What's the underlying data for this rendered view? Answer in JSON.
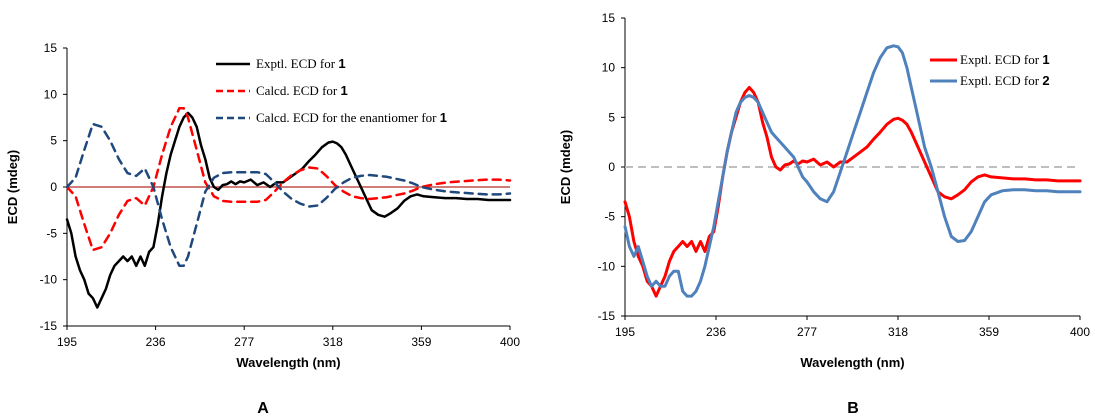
{
  "chart_data": [
    {
      "type": "line",
      "panel_label": "A",
      "xlabel": "Wavelength (nm)",
      "ylabel": "ECD (mdeg)",
      "xlim": [
        195,
        400
      ],
      "ylim": [
        -15,
        15
      ],
      "xticks": [
        195,
        236,
        277,
        318,
        359,
        400
      ],
      "yticks": [
        -15,
        -10,
        -5,
        0,
        5,
        10,
        15
      ],
      "grid": false,
      "legend_position": "top-right",
      "zero_line": {
        "y": 0,
        "color": "#c0504d"
      },
      "series": [
        {
          "name": "Exptl. ECD for",
          "compound": "1",
          "color": "#000000",
          "style": "solid",
          "x": [
            195,
            197,
            199,
            201,
            203,
            205,
            207,
            209,
            211,
            213,
            215,
            217,
            219,
            221,
            223,
            225,
            227,
            229,
            231,
            233,
            235,
            237,
            239,
            241,
            243,
            245,
            247,
            249,
            251,
            253,
            255,
            257,
            259,
            261,
            263,
            265,
            267,
            269,
            271,
            273,
            275,
            277,
            280,
            283,
            286,
            289,
            292,
            295,
            298,
            301,
            304,
            307,
            310,
            313,
            316,
            318,
            320,
            322,
            324,
            327,
            330,
            333,
            336,
            339,
            342,
            345,
            348,
            351,
            354,
            357,
            360,
            365,
            370,
            375,
            380,
            385,
            390,
            395,
            400
          ],
          "y": [
            -3.5,
            -5,
            -7.5,
            -9,
            -10,
            -11.5,
            -12,
            -13,
            -12,
            -11,
            -9.5,
            -8.5,
            -8,
            -7.5,
            -8,
            -7.5,
            -8.5,
            -7.5,
            -8.5,
            -7,
            -6.5,
            -4,
            -1,
            1.5,
            3.5,
            5,
            6.5,
            7.5,
            8,
            7.5,
            6.5,
            4.5,
            3,
            1,
            0,
            -0.3,
            0.2,
            0.3,
            0.6,
            0.3,
            0.6,
            0.5,
            0.8,
            0.2,
            0.5,
            0,
            0.5,
            0.5,
            1,
            1.5,
            2,
            2.8,
            3.5,
            4.3,
            4.8,
            4.9,
            4.7,
            4.3,
            3.5,
            2,
            0.5,
            -1,
            -2.5,
            -3,
            -3.2,
            -2.8,
            -2.3,
            -1.5,
            -1,
            -0.8,
            -1,
            -1.1,
            -1.2,
            -1.2,
            -1.3,
            -1.3,
            -1.4,
            -1.4,
            -1.4
          ]
        },
        {
          "name": "Calcd. ECD for",
          "compound": "1",
          "color": "#ff0000",
          "style": "dashed",
          "x": [
            195,
            199,
            203,
            207,
            211,
            215,
            219,
            223,
            227,
            231,
            235,
            239,
            243,
            247,
            249,
            251,
            255,
            259,
            263,
            267,
            271,
            275,
            279,
            283,
            287,
            291,
            295,
            299,
            303,
            307,
            311,
            315,
            319,
            323,
            327,
            331,
            335,
            339,
            343,
            347,
            351,
            355,
            359,
            365,
            371,
            377,
            383,
            389,
            395,
            400
          ],
          "y": [
            0,
            -1,
            -4,
            -6.8,
            -6.5,
            -5,
            -3,
            -1.5,
            -1.2,
            -2,
            0,
            3.5,
            6.5,
            8.5,
            8.5,
            7.5,
            4,
            0.5,
            -1,
            -1.5,
            -1.6,
            -1.6,
            -1.6,
            -1.6,
            -1.4,
            -0.5,
            0.5,
            1.3,
            1.8,
            2.1,
            2,
            1.2,
            0.2,
            -0.5,
            -1,
            -1.2,
            -1.3,
            -1.2,
            -1.1,
            -0.9,
            -0.7,
            -0.4,
            0,
            0.3,
            0.5,
            0.6,
            0.7,
            0.8,
            0.8,
            0.7
          ]
        },
        {
          "name": "Calcd. ECD for the enantiomer for",
          "compound": "1",
          "color": "#1f497d",
          "style": "dashed",
          "x": [
            195,
            199,
            203,
            207,
            211,
            215,
            219,
            223,
            227,
            231,
            235,
            239,
            243,
            247,
            249,
            251,
            255,
            259,
            263,
            267,
            271,
            275,
            279,
            283,
            287,
            291,
            295,
            299,
            303,
            307,
            311,
            315,
            319,
            323,
            327,
            331,
            335,
            339,
            343,
            347,
            351,
            355,
            359,
            365,
            371,
            377,
            383,
            389,
            395,
            400
          ],
          "y": [
            0,
            1,
            4,
            6.8,
            6.5,
            5,
            3,
            1.5,
            1.2,
            2,
            0,
            -3.5,
            -6.5,
            -8.5,
            -8.5,
            -7.5,
            -4,
            -0.5,
            1,
            1.5,
            1.6,
            1.6,
            1.6,
            1.6,
            1.4,
            0.5,
            -0.5,
            -1.3,
            -1.8,
            -2.1,
            -2,
            -1.2,
            -0.2,
            0.5,
            1,
            1.2,
            1.3,
            1.2,
            1.1,
            0.9,
            0.7,
            0.4,
            0,
            -0.3,
            -0.5,
            -0.6,
            -0.7,
            -0.8,
            -0.8,
            -0.7
          ]
        }
      ]
    },
    {
      "type": "line",
      "panel_label": "B",
      "xlabel": "Wavelength (nm)",
      "ylabel": "ECD (mdeg)",
      "xlim": [
        195,
        400
      ],
      "ylim": [
        -15,
        15
      ],
      "xticks": [
        195,
        236,
        277,
        318,
        359,
        400
      ],
      "yticks": [
        -15,
        -10,
        -5,
        0,
        5,
        10,
        15
      ],
      "grid": false,
      "legend_position": "top-right",
      "zero_line": {
        "y": 0,
        "color": "#bfbfbf"
      },
      "series": [
        {
          "name": "Exptl. ECD for",
          "compound": "1",
          "color": "#ff0000",
          "style": "solid",
          "x": [
            195,
            197,
            199,
            201,
            203,
            205,
            207,
            209,
            211,
            213,
            215,
            217,
            219,
            221,
            223,
            225,
            227,
            229,
            231,
            233,
            235,
            237,
            239,
            241,
            243,
            245,
            247,
            249,
            251,
            253,
            255,
            257,
            259,
            261,
            263,
            265,
            267,
            269,
            271,
            273,
            275,
            277,
            280,
            283,
            286,
            289,
            292,
            295,
            298,
            301,
            304,
            307,
            310,
            313,
            316,
            318,
            320,
            322,
            324,
            327,
            330,
            333,
            336,
            339,
            342,
            345,
            348,
            351,
            354,
            357,
            360,
            365,
            370,
            375,
            380,
            385,
            390,
            395,
            400
          ],
          "y": [
            -3.5,
            -5,
            -7.5,
            -9,
            -10,
            -11.5,
            -12,
            -13,
            -12,
            -11,
            -9.5,
            -8.5,
            -8,
            -7.5,
            -8,
            -7.5,
            -8.5,
            -7.5,
            -8.5,
            -7,
            -6.5,
            -4,
            -1,
            1.5,
            3.5,
            5,
            6.5,
            7.5,
            8,
            7.5,
            6.5,
            4.5,
            3,
            1,
            0,
            -0.3,
            0.2,
            0.3,
            0.6,
            0.3,
            0.6,
            0.5,
            0.8,
            0.2,
            0.5,
            0,
            0.5,
            0.5,
            1,
            1.5,
            2,
            2.8,
            3.5,
            4.3,
            4.8,
            4.9,
            4.7,
            4.3,
            3.5,
            2,
            0.5,
            -1,
            -2.5,
            -3,
            -3.2,
            -2.8,
            -2.3,
            -1.5,
            -1,
            -0.8,
            -1,
            -1.1,
            -1.2,
            -1.2,
            -1.3,
            -1.3,
            -1.4,
            -1.4,
            -1.4
          ]
        },
        {
          "name": "Exptl. ECD for",
          "compound": "2",
          "color": "#4f81bd",
          "style": "solid",
          "x": [
            195,
            197,
            199,
            201,
            203,
            205,
            207,
            209,
            211,
            213,
            215,
            217,
            219,
            221,
            223,
            225,
            227,
            229,
            231,
            233,
            235,
            237,
            239,
            241,
            243,
            245,
            247,
            249,
            251,
            253,
            255,
            257,
            259,
            261,
            263,
            265,
            267,
            269,
            271,
            273,
            275,
            277,
            280,
            283,
            286,
            289,
            292,
            295,
            298,
            301,
            304,
            307,
            310,
            313,
            316,
            318,
            320,
            322,
            324,
            326,
            328,
            330,
            333,
            336,
            339,
            342,
            345,
            348,
            351,
            354,
            357,
            360,
            365,
            370,
            375,
            380,
            385,
            390,
            395,
            400
          ],
          "y": [
            -6,
            -8,
            -9,
            -8,
            -9.5,
            -11,
            -12,
            -11.5,
            -12,
            -12,
            -11,
            -10.5,
            -10.5,
            -12.5,
            -13,
            -13,
            -12.5,
            -11.5,
            -10,
            -8,
            -6,
            -3.5,
            -1,
            1.5,
            3.5,
            5.5,
            6.5,
            7,
            7.2,
            7,
            6.5,
            5.5,
            4.5,
            3.5,
            3,
            2.5,
            2,
            1.5,
            1,
            0,
            -1,
            -1.5,
            -2.5,
            -3.2,
            -3.5,
            -2.5,
            -0.5,
            1.5,
            3.5,
            5.5,
            7.5,
            9.5,
            11,
            12,
            12.2,
            12.1,
            11.5,
            10,
            8,
            6,
            4,
            2,
            0,
            -2.5,
            -5,
            -7,
            -7.5,
            -7.4,
            -6.5,
            -5,
            -3.5,
            -2.8,
            -2.4,
            -2.3,
            -2.3,
            -2.4,
            -2.4,
            -2.5,
            -2.5,
            -2.5
          ]
        }
      ]
    }
  ]
}
